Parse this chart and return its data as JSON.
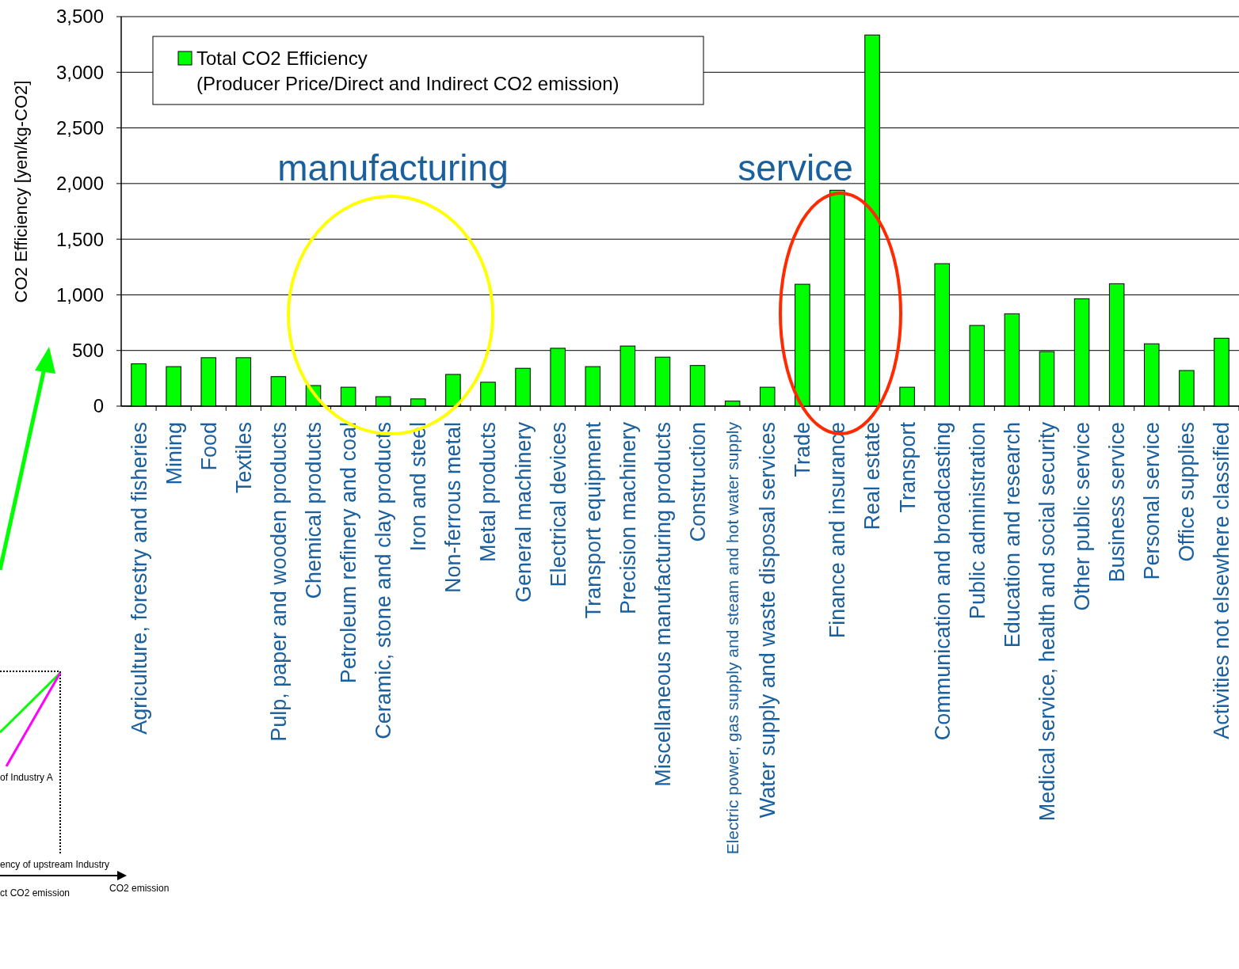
{
  "chart_data": {
    "type": "bar",
    "ylabel": "CO2 Efficiency [yen/kg-CO2]",
    "categories": [
      "Agriculture, forestry and fisheries",
      "Mining",
      "Food",
      "Textiles",
      "Pulp, paper and wooden products",
      "Chemical products",
      "Petroleum refinery and coal",
      "Ceramic, stone and clay products",
      "Iron and steel",
      "Non-ferrous metal",
      "Metal products",
      "General machinery",
      "Electrical devices",
      "Transport equipment",
      "Precision machinery",
      "Miscellaneous manufacturing products",
      "Construction",
      "Electric power, gas supply and steam and hot water supply",
      "Water supply and waste disposal services",
      "Trade",
      "Finance and insurance",
      "Real estate",
      "Transport",
      "Communication and broadcasting",
      "Public administration",
      "Education and research",
      "Medical service, health and social security",
      "Other public service",
      "Business service",
      "Personal service",
      "Office supplies",
      "Activities not elsewhere classified"
    ],
    "series": [
      {
        "name": "Total CO2 Efficiency\n(Producer Price/Direct and Indirect CO2 emission)",
        "color": "#00ff00",
        "values": [
          380,
          355,
          435,
          435,
          265,
          185,
          170,
          85,
          65,
          285,
          215,
          340,
          520,
          355,
          540,
          440,
          365,
          45,
          170,
          1095,
          1940,
          3335,
          170,
          1280,
          725,
          830,
          490,
          965,
          1100,
          560,
          320,
          610
        ]
      }
    ],
    "ylim": [
      0,
      3500
    ],
    "yticks": [
      {
        "value": 0,
        "label": "0"
      },
      {
        "value": 500,
        "label": "500"
      },
      {
        "value": 1000,
        "label": "1,000"
      },
      {
        "value": 1500,
        "label": "1,500"
      },
      {
        "value": 2000,
        "label": "2,000"
      },
      {
        "value": 2500,
        "label": "2,500"
      },
      {
        "value": 3000,
        "label": "3,000"
      },
      {
        "value": 3500,
        "label": "3,500"
      }
    ],
    "grid": "y",
    "legend": "top left",
    "annotations": [
      "manufacturing",
      "service",
      "of Industry A",
      "ency of upstream Industry",
      "ct CO2 emission",
      "CO2 emission"
    ]
  }
}
